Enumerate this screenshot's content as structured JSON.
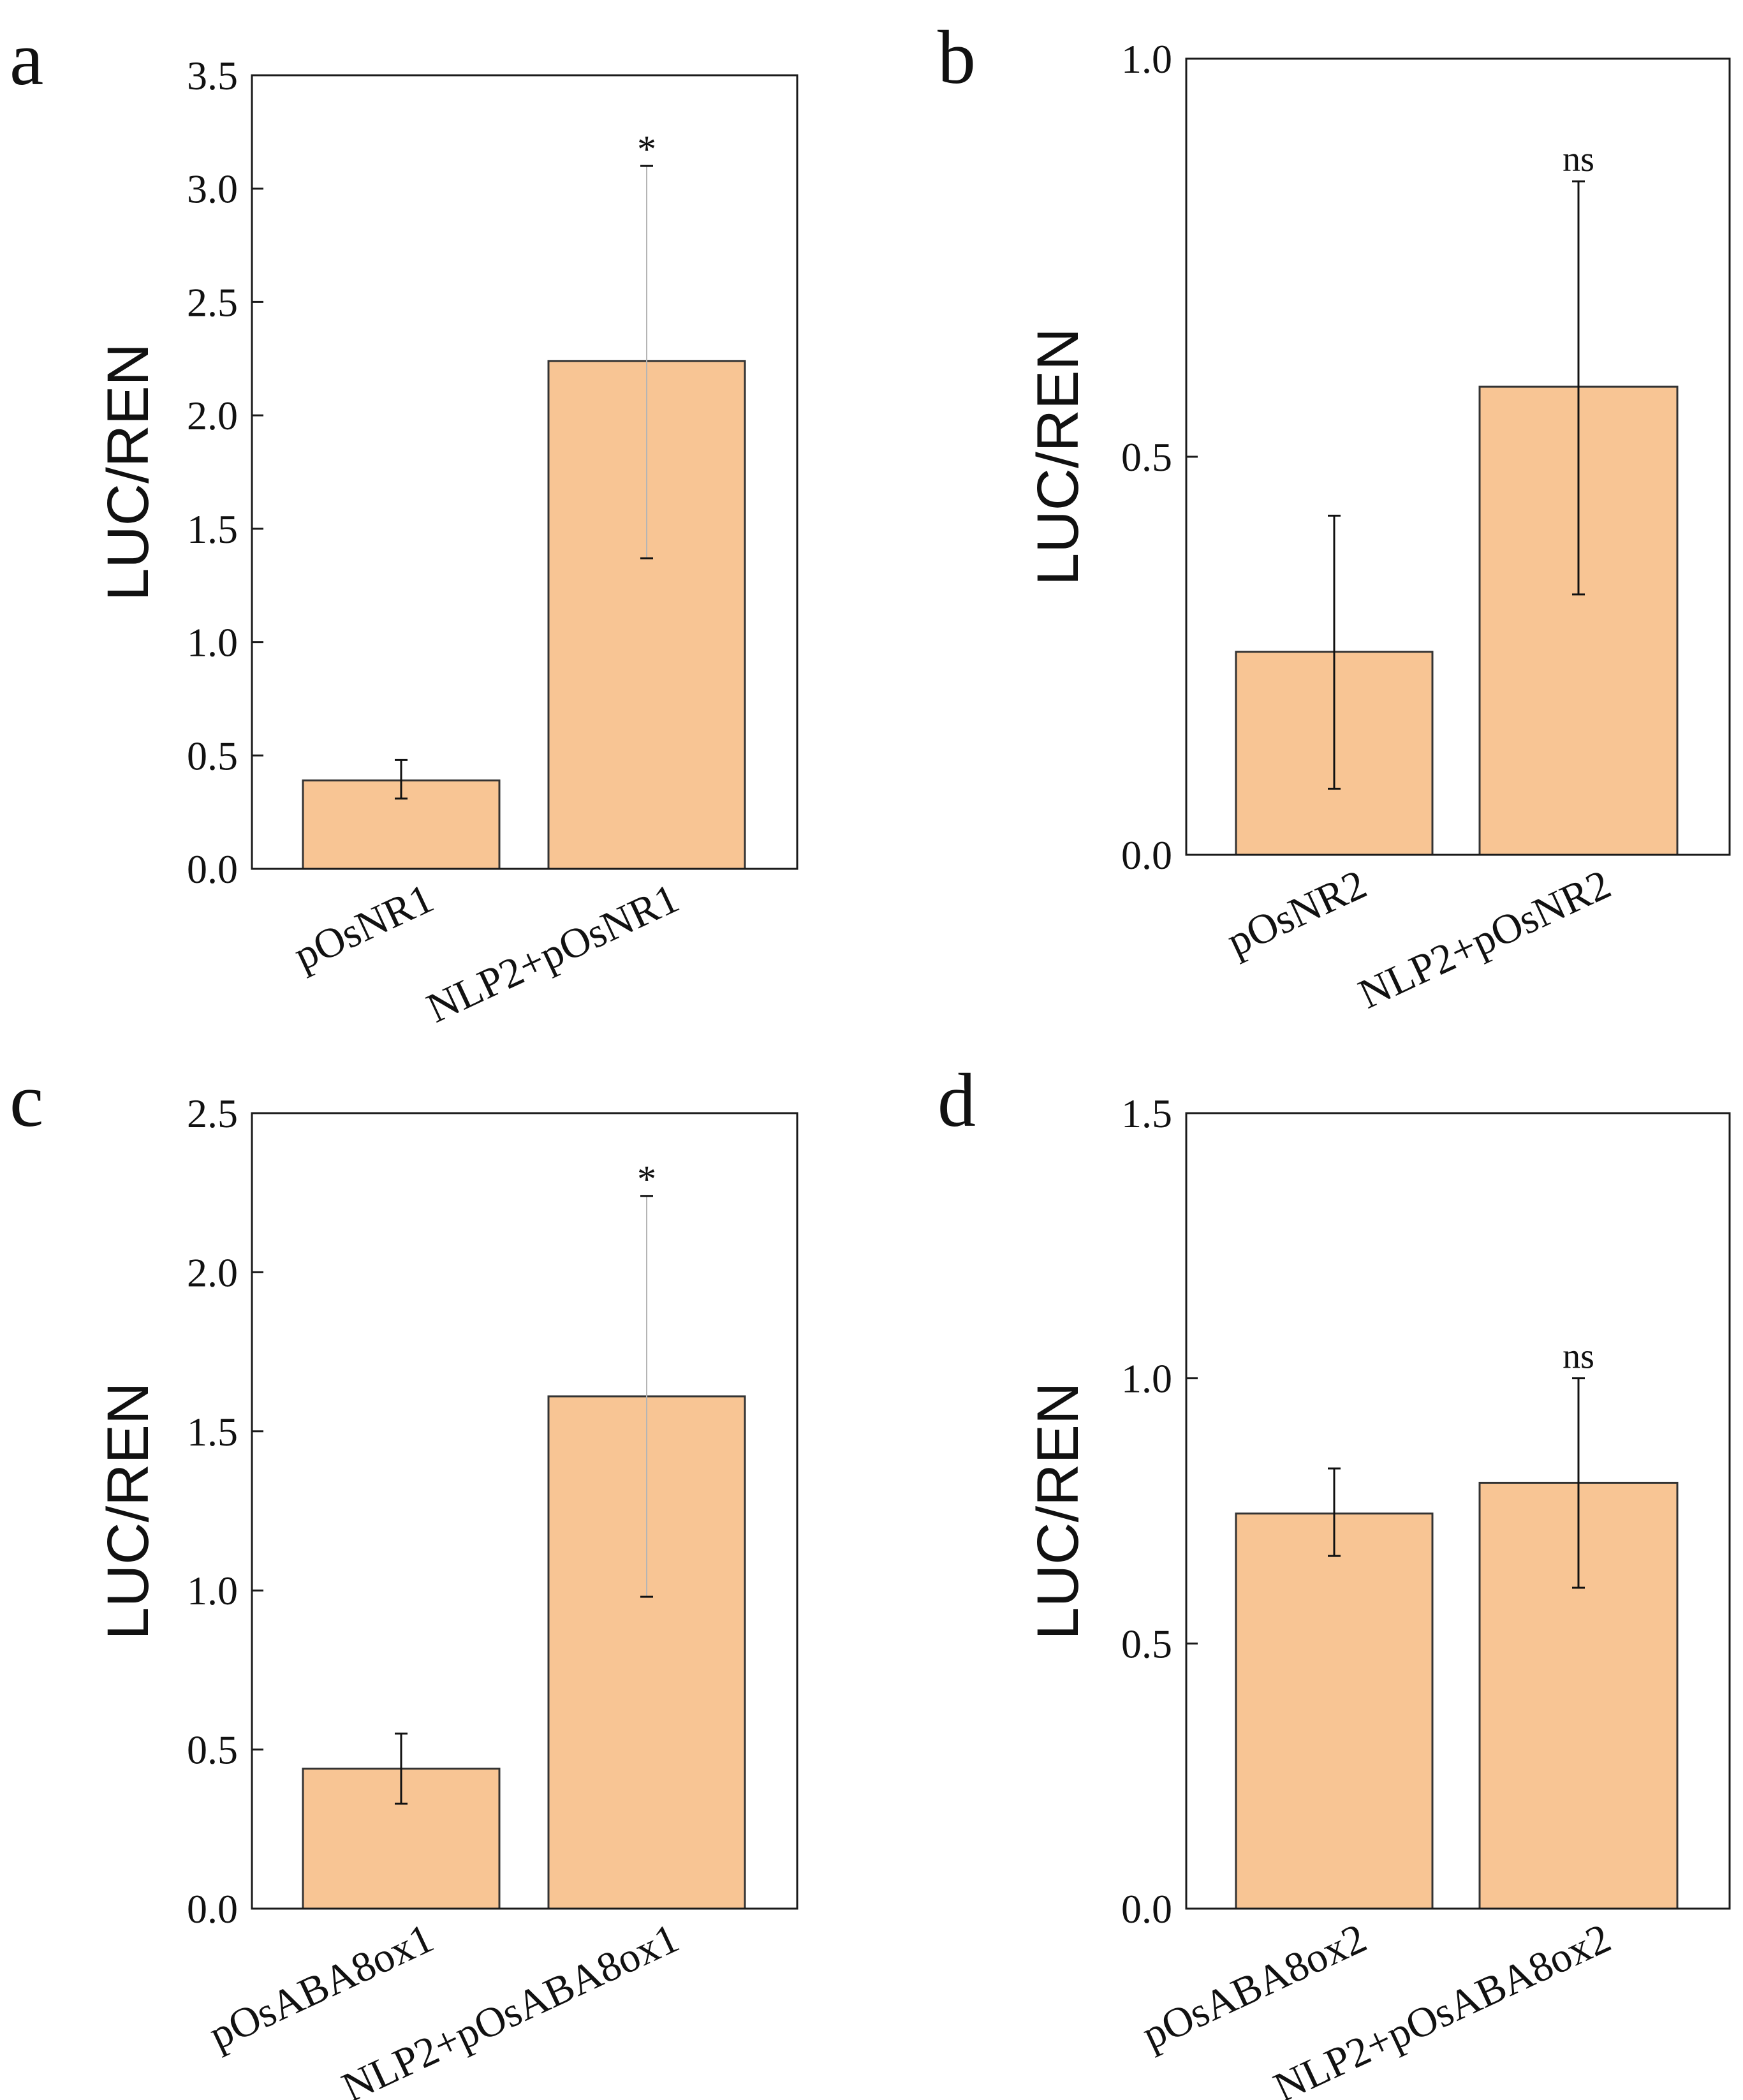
{
  "colors": {
    "bar_fill": "#f8c594",
    "bar_stroke": "#333333",
    "axis": "#1a1a1a",
    "error_bar": "#111111",
    "error_bar_light": "#b5b5b5"
  },
  "chart_data": [
    {
      "panel": "a",
      "type": "bar",
      "ylabel": "LUC/REN",
      "ylim": [
        0,
        3.5
      ],
      "yticks": [
        0.0,
        0.5,
        1.0,
        1.5,
        2.0,
        2.5,
        3.0,
        3.5
      ],
      "tick_labels": [
        "0.0",
        "0.5",
        "1.0",
        "1.5",
        "2.0",
        "2.5",
        "3.0",
        "3.5"
      ],
      "categories": [
        "pOsNR1",
        "NLP2+pOsNR1"
      ],
      "values": [
        0.39,
        2.24
      ],
      "error_low": [
        0.31,
        1.37
      ],
      "error_high": [
        0.48,
        3.1
      ],
      "annotations": [
        "",
        "*"
      ]
    },
    {
      "panel": "b",
      "type": "bar",
      "ylabel": "LUC/REN",
      "ylim": [
        0,
        1.0
      ],
      "yticks": [
        0.0,
        0.5,
        1.0
      ],
      "tick_labels": [
        "0.0",
        "0.5",
        "1.0"
      ],
      "categories": [
        "pOsNR2",
        "NLP2+pOsNR2"
      ],
      "values": [
        0.255,
        0.588
      ],
      "error_low": [
        0.083,
        0.327
      ],
      "error_high": [
        0.426,
        0.846
      ],
      "annotations": [
        "",
        "ns"
      ]
    },
    {
      "panel": "c",
      "type": "bar",
      "ylabel": "LUC/REN",
      "ylim": [
        0,
        2.5
      ],
      "yticks": [
        0.0,
        0.5,
        1.0,
        1.5,
        2.0,
        2.5
      ],
      "tick_labels": [
        "0.0",
        "0.5",
        "1.0",
        "1.5",
        "2.0",
        "2.5"
      ],
      "categories": [
        "pOsABA8ox1",
        "NLP2+pOsABA8ox1"
      ],
      "values": [
        0.44,
        1.61
      ],
      "error_low": [
        0.33,
        0.98
      ],
      "error_high": [
        0.55,
        2.24
      ],
      "annotations": [
        "",
        "*"
      ]
    },
    {
      "panel": "d",
      "type": "bar",
      "ylabel": "LUC/REN",
      "ylim": [
        0,
        1.5
      ],
      "yticks": [
        0.0,
        0.5,
        1.0,
        1.5
      ],
      "tick_labels": [
        "0.0",
        "0.5",
        "1.0",
        "1.5"
      ],
      "categories": [
        "pOsABA8ox2",
        "NLP2+pOsABA8ox2"
      ],
      "values": [
        0.745,
        0.803
      ],
      "error_low": [
        0.665,
        0.605
      ],
      "error_high": [
        0.83,
        1.0
      ],
      "annotations": [
        "",
        "ns"
      ]
    }
  ]
}
